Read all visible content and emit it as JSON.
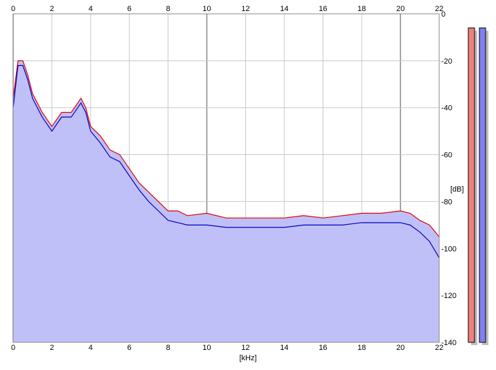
{
  "chart_data": {
    "type": "area",
    "xlabel": "[kHz]",
    "ylabel": "[dB]",
    "xlim": [
      0,
      22
    ],
    "ylim": [
      -140,
      0
    ],
    "x_ticks": [
      "0",
      "2",
      "4",
      "6",
      "8",
      "10",
      "12",
      "14",
      "16",
      "18",
      "20",
      "22"
    ],
    "y_ticks": [
      "0",
      "-20",
      "-40",
      "-60",
      "-80",
      "-100",
      "-120",
      "-140"
    ],
    "grid": true,
    "series": [
      {
        "color": "#e00000",
        "x": [
          0,
          0.25,
          0.5,
          0.75,
          1,
          1.25,
          1.5,
          1.75,
          2,
          2.5,
          3,
          3.5,
          3.75,
          4,
          4.5,
          5,
          5.5,
          6,
          6.5,
          7,
          7.5,
          8,
          8.5,
          9,
          10,
          11,
          12,
          13,
          14,
          15,
          16,
          17,
          18,
          19,
          20,
          20.5,
          21,
          21.5,
          22
        ],
        "y": [
          -36,
          -20,
          -20,
          -26,
          -34,
          -38,
          -42,
          -45,
          -48,
          -42,
          -42,
          -36,
          -40,
          -48,
          -52,
          -58,
          -60,
          -66,
          -72,
          -76,
          -80,
          -84,
          -84,
          -86,
          -85,
          -87,
          -87,
          -87,
          -87,
          -86,
          -87,
          -86,
          -85,
          -85,
          -84,
          -85,
          -88,
          -90,
          -95
        ]
      },
      {
        "color": "#0000c0",
        "x": [
          0,
          0.25,
          0.5,
          0.75,
          1,
          1.25,
          1.5,
          1.75,
          2,
          2.5,
          3,
          3.5,
          3.75,
          4,
          4.5,
          5,
          5.5,
          6,
          6.5,
          7,
          7.5,
          8,
          8.5,
          9,
          10,
          11,
          12,
          13,
          14,
          15,
          16,
          17,
          18,
          19,
          20,
          20.5,
          21,
          21.5,
          22
        ],
        "y": [
          -40,
          -22,
          -22,
          -28,
          -36,
          -40,
          -44,
          -47,
          -50,
          -44,
          -44,
          -38,
          -42,
          -50,
          -55,
          -61,
          -63,
          -69,
          -75,
          -80,
          -84,
          -88,
          -89,
          -90,
          -90,
          -91,
          -91,
          -91,
          -91,
          -90,
          -90,
          -90,
          -89,
          -89,
          -89,
          -90,
          -93,
          -97,
          -104
        ]
      }
    ],
    "level_meters": [
      {
        "color": "#f08080",
        "level_db": -6
      },
      {
        "color": "#8080f0",
        "level_db": -6
      }
    ]
  },
  "colors": {
    "fill": "#c0c0f8",
    "grid": "#c8c8c8",
    "major_grid": "#888888",
    "left_channel": "#e00000",
    "right_channel": "#0000c0"
  }
}
